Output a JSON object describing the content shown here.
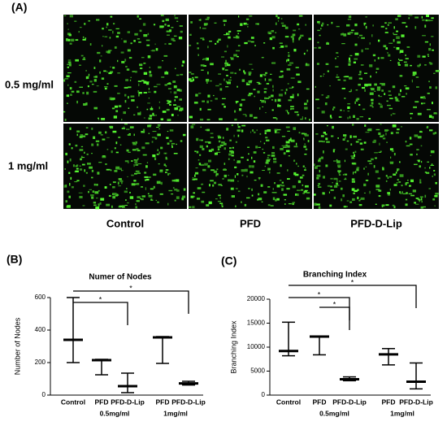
{
  "panel_a": {
    "label": "(A)",
    "row_labels": [
      "0.5 mg/ml",
      "1 mg/ml"
    ],
    "column_labels": [
      "Control",
      "PFD",
      "PFD-D-Lip"
    ]
  },
  "chart_data": [
    {
      "type": "range",
      "panel_label": "(B)",
      "title": "Numer of Nodes",
      "y_label": "Number of Nodes",
      "categories": [
        "Control",
        "PFD",
        "PFD-D-Lip",
        "PFD",
        "PFD-D-Lip"
      ],
      "groups": [
        {
          "label": "0.5mg/ml",
          "from": 1,
          "to": 2
        },
        {
          "label": "1mg/ml",
          "from": 3,
          "to": 4
        }
      ],
      "min": [
        200,
        125,
        15,
        195,
        62
      ],
      "median": [
        340,
        215,
        55,
        355,
        72
      ],
      "max": [
        600,
        220,
        135,
        360,
        85
      ],
      "ylim": [
        0,
        600
      ],
      "yticks": [
        0,
        200,
        400,
        600
      ],
      "significance": [
        {
          "from": 0,
          "to": 4,
          "label": "*"
        },
        {
          "from": 0,
          "to": 2,
          "label": "*"
        }
      ]
    },
    {
      "type": "range",
      "panel_label": "(C)",
      "title": "Branching Index",
      "y_label": "Branching Index",
      "categories": [
        "Control",
        "PFD",
        "PFD-D-Lip",
        "PFD",
        "PFD-D-Lip"
      ],
      "groups": [
        {
          "label": "0.5mg/ml",
          "from": 1,
          "to": 2
        },
        {
          "label": "1mg/ml",
          "from": 3,
          "to": 4
        }
      ],
      "min": [
        8200,
        8400,
        3000,
        6300,
        1300
      ],
      "median": [
        9200,
        12200,
        3300,
        8500,
        2800
      ],
      "max": [
        15200,
        12300,
        3800,
        9700,
        6700
      ],
      "ylim": [
        0,
        20000
      ],
      "yticks": [
        0,
        5000,
        10000,
        15000,
        20000
      ],
      "significance": [
        {
          "from": 0,
          "to": 4,
          "label": "*"
        },
        {
          "from": 0,
          "to": 2,
          "label": "*"
        },
        {
          "from": 1,
          "to": 2,
          "label": "*"
        }
      ]
    }
  ]
}
